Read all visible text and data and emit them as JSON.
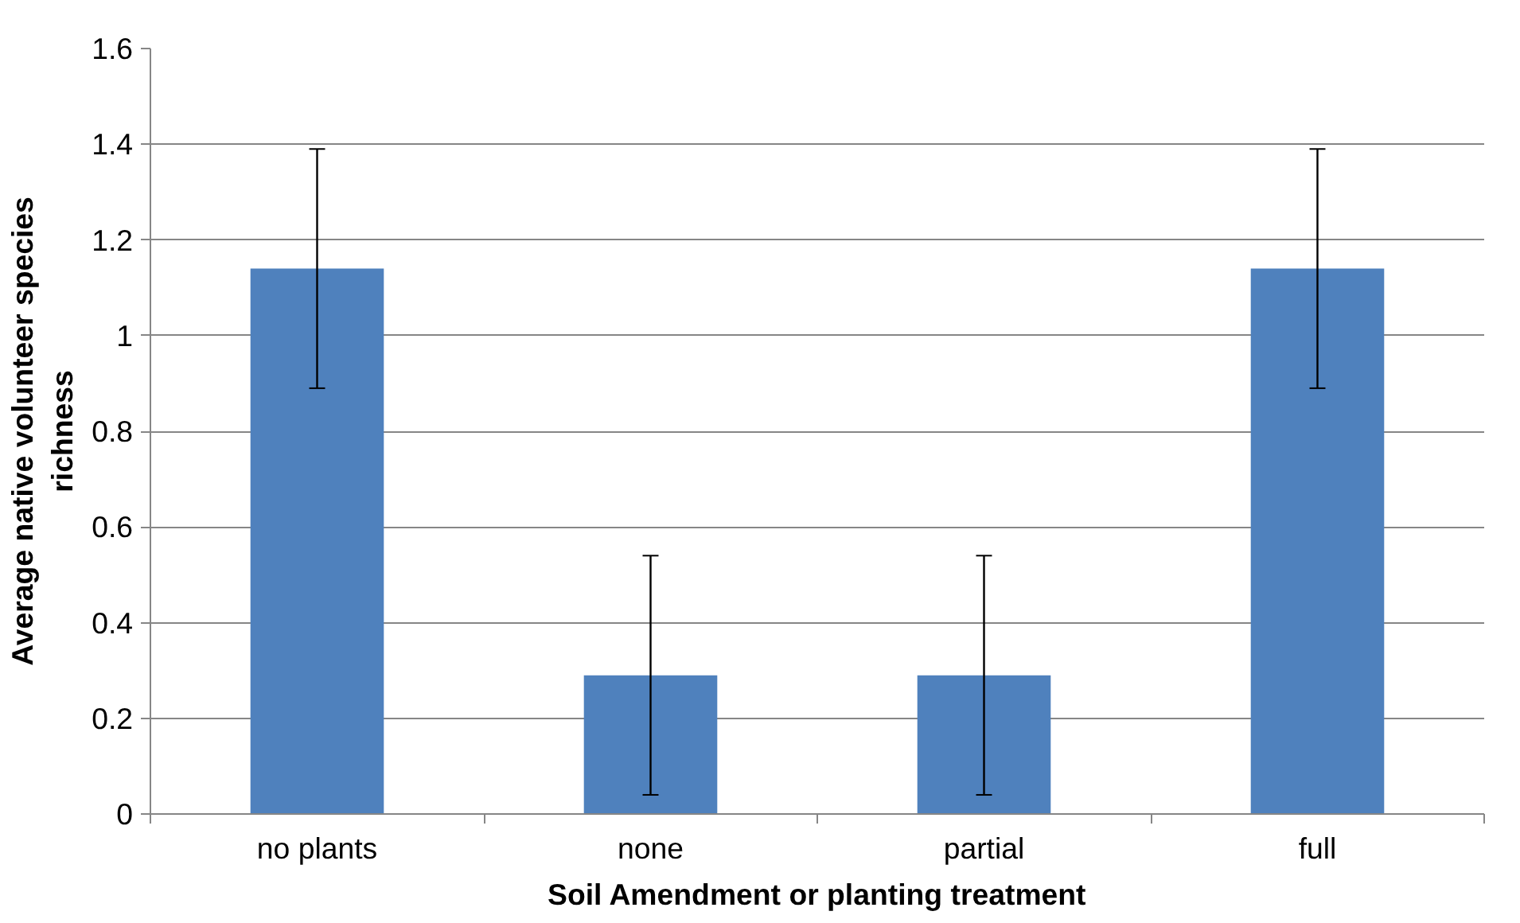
{
  "chart_data": {
    "type": "bar",
    "xlabel": "Soil Amendment or planting treatment",
    "ylabel": "Average native volunteer species richness",
    "categories": [
      "no plants",
      "none",
      "partial",
      "full"
    ],
    "values": [
      1.14,
      0.29,
      0.29,
      1.14
    ],
    "errors": [
      0.25,
      0.25,
      0.25,
      0.25
    ],
    "color": "#4f81bd",
    "ylim": [
      0,
      1.6
    ],
    "yticks": [
      0,
      0.2,
      0.4,
      0.6,
      0.8,
      1,
      1.2,
      1.4,
      1.6
    ],
    "grid": "y"
  }
}
